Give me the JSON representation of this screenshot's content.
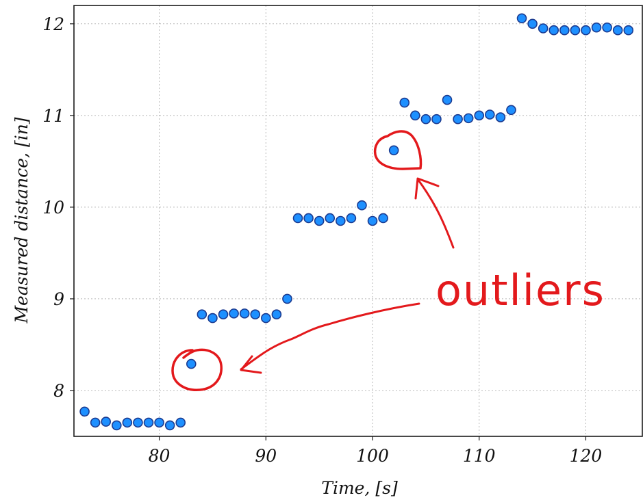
{
  "chart_data": {
    "type": "scatter",
    "xlabel": "Time, [s]",
    "ylabel": "Measured distance, [in]",
    "xlim": [
      72,
      125.3
    ],
    "ylim": [
      7.5,
      12.2
    ],
    "x_ticks": [
      80,
      90,
      100,
      110,
      120
    ],
    "y_ticks": [
      8,
      9,
      10,
      11,
      12
    ],
    "grid": true,
    "marker": {
      "shape": "circle",
      "fill": "#1e90ff",
      "edge": "#1b3a8f"
    },
    "annotation_color": "#e3191c",
    "series": [
      {
        "x": [
          73,
          74,
          75,
          76,
          77,
          78,
          79,
          80,
          81,
          82,
          83,
          84,
          85,
          86,
          87,
          88,
          89,
          90,
          91,
          92,
          93,
          94,
          95,
          96,
          97,
          98,
          99,
          100,
          101,
          102,
          103,
          104,
          105,
          106,
          107,
          108,
          109,
          110,
          111,
          112,
          113,
          114,
          115,
          116,
          117,
          118,
          119,
          120,
          121,
          122,
          123,
          124
        ],
        "y": [
          7.77,
          7.65,
          7.66,
          7.62,
          7.65,
          7.65,
          7.65,
          7.65,
          7.62,
          7.65,
          8.29,
          8.83,
          8.79,
          8.83,
          8.84,
          8.84,
          8.83,
          8.79,
          8.83,
          9.0,
          9.88,
          9.88,
          9.85,
          9.88,
          9.85,
          9.88,
          10.02,
          9.85,
          9.88,
          10.62,
          11.14,
          11.0,
          10.96,
          10.96,
          11.17,
          10.96,
          10.97,
          11.0,
          11.01,
          10.98,
          11.06,
          12.06,
          12.0,
          11.95,
          11.93,
          11.93,
          11.93,
          11.93,
          11.96,
          11.96,
          11.93,
          11.93
        ]
      }
    ],
    "annotations": [
      {
        "text": "outliers",
        "points_to": [
          [
            83,
            8.29
          ],
          [
            102,
            10.62
          ]
        ]
      }
    ]
  }
}
